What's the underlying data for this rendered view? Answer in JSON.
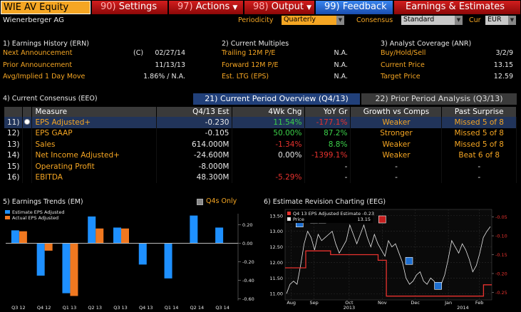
{
  "toolbar": {
    "ticker": "WIE AV Equity",
    "settings": {
      "num": "90)",
      "label": "Settings"
    },
    "actions": {
      "num": "97)",
      "label": "Actions"
    },
    "output": {
      "num": "98)",
      "label": "Output"
    },
    "feedback": {
      "num": "99)",
      "label": "Feedback"
    },
    "title": "Earnings & Estimates"
  },
  "header": {
    "company": "Wienerberger AG",
    "periodicity_label": "Periodicity",
    "periodicity_value": "Quarterly",
    "consensus_label": "Consensus",
    "consensus_value": "Standard",
    "cur_label": "Cur",
    "cur_value": "EUR"
  },
  "ern": {
    "title": "1) Earnings History (ERN)",
    "rows": [
      {
        "label": "Next Announcement",
        "flag": "(C)",
        "value": "02/27/14"
      },
      {
        "label": "Prior Announcement",
        "flag": "",
        "value": "11/13/13"
      },
      {
        "label": "Avg/Implied 1 Day Move",
        "flag": "",
        "value": "1.86% / N.A."
      }
    ]
  },
  "multiples": {
    "title": "2) Current Multiples",
    "rows": [
      {
        "label": "Trailing 12M P/E",
        "value": "N.A."
      },
      {
        "label": "Forward 12M P/E",
        "value": "N.A."
      },
      {
        "label": "Est. LTG (EPS)",
        "value": "N.A."
      }
    ]
  },
  "anr": {
    "title": "3) Analyst Coverage (ANR)",
    "rows": [
      {
        "label": "Buy/Hold/Sell",
        "value": "3/2/9"
      },
      {
        "label": "Current Price",
        "value": "13.15"
      },
      {
        "label": "Target Price",
        "value": "12.59"
      }
    ]
  },
  "eeo": {
    "title": "4) Current Consensus (EEO)",
    "tab_current": "21) Current Period Overview (Q4/13)",
    "tab_prior": "22) Prior Period Analysis (Q3/13)",
    "headers": [
      "Measure",
      "Q4/13 Est",
      "4Wk Chg",
      "YoY Gr",
      "Growth vs Comps",
      "Past Surprise"
    ],
    "rows": [
      {
        "num": "11)",
        "measure": "EPS Adjusted+",
        "est": "-0.230",
        "chg": "11.54%",
        "yoy": "-177.1%",
        "comps": "Weaker",
        "surprise": "Missed 5 of 8"
      },
      {
        "num": "12)",
        "measure": "EPS GAAP",
        "est": "-0.105",
        "chg": "50.00%",
        "yoy": "87.2%",
        "comps": "Stronger",
        "surprise": "Missed 5 of 8"
      },
      {
        "num": "13)",
        "measure": "Sales",
        "est": "614.000M",
        "chg": "-1.34%",
        "yoy": "8.8%",
        "comps": "Weaker",
        "surprise": "Missed 5 of 8"
      },
      {
        "num": "14)",
        "measure": "Net Income Adjusted+",
        "est": "-24.600M",
        "chg": "0.00%",
        "yoy": "-1399.1%",
        "comps": "Weaker",
        "surprise": "Beat 6 of 8"
      },
      {
        "num": "15)",
        "measure": "Operating Profit",
        "est": "-8.000M",
        "chg": "",
        "yoy": "-",
        "comps": "-",
        "surprise": "-"
      },
      {
        "num": "16)",
        "measure": "EBITDA",
        "est": "48.300M",
        "chg": "-5.29%",
        "yoy": "-",
        "comps": "-",
        "surprise": "-"
      }
    ]
  },
  "em": {
    "title": "5) Earnings Trends (EM)",
    "q4s_label": "Q4s Only",
    "legend": [
      "Estimate EPS Adjusted",
      "Actual EPS Adjusted"
    ],
    "yticks": [
      "0.20",
      "0.00",
      "-0.20",
      "-0.40",
      "-0.60"
    ]
  },
  "eeg": {
    "title": "6) Estimate Revision Charting (EEG)",
    "legend_est": "Q4 13 EPS Adjusted Estimate -0.23",
    "legend_price": "Price",
    "legend_price_val": "13.15",
    "left_ticks": [
      "13.50",
      "13.00",
      "12.50",
      "12.00",
      "11.50",
      "11.00"
    ],
    "right_ticks": [
      "-0.05",
      "-0.10",
      "-0.15",
      "-0.20",
      "-0.25"
    ],
    "x_ticks": [
      "Aug",
      "Sep",
      "Oct",
      "Nov",
      "Dec",
      "Jan",
      "Feb"
    ],
    "year_ticks": [
      "2013",
      "2014"
    ]
  },
  "chart_data": [
    {
      "type": "bar",
      "title": "",
      "categories": [
        "Q3 12",
        "Q4 12",
        "Q1 13",
        "Q2 13",
        "Q3 13",
        "Q4 13",
        "Q1 14",
        "Q2 14",
        "Q3 14"
      ],
      "series": [
        {
          "name": "Estimate EPS Adjusted",
          "color": "#1e90ff",
          "values": [
            0.14,
            -0.35,
            -0.54,
            0.29,
            0.17,
            -0.23,
            -0.38,
            0.3,
            0.17
          ]
        },
        {
          "name": "Actual EPS Adjusted",
          "color": "#f07820",
          "values": [
            0.13,
            -0.08,
            -0.57,
            0.16,
            0.16,
            null,
            null,
            null,
            null
          ]
        }
      ],
      "ylim": [
        -0.62,
        0.32
      ],
      "yticks": [
        0.2,
        0.0,
        -0.2,
        -0.4,
        -0.6
      ]
    },
    {
      "type": "line",
      "title": "",
      "x_range": [
        "2013-07-24",
        "2014-02-20"
      ],
      "series": [
        {
          "name": "Price",
          "axis": "left",
          "color": "#e8e8e8",
          "values": [
            11.0,
            11.3,
            11.4,
            11.3,
            11.9,
            12.6,
            13.0,
            12.8,
            12.4,
            12.9,
            12.7,
            12.8,
            12.9,
            13.0,
            12.6,
            12.3,
            12.5,
            12.7,
            13.2,
            12.9,
            12.6,
            12.9,
            13.2,
            12.8,
            12.5,
            12.9,
            12.6,
            12.4,
            12.2,
            12.7,
            12.5,
            12.6,
            12.3,
            12.0,
            11.5,
            11.3,
            11.4,
            11.6,
            11.7,
            11.4,
            11.3,
            11.5,
            11.4,
            11.2,
            11.3,
            11.6,
            12.1,
            12.7,
            12.5,
            12.3,
            12.6,
            12.4,
            12.1,
            11.7,
            11.9,
            12.3,
            12.8,
            13.0,
            13.15
          ]
        },
        {
          "name": "Q4 13 EPS Adjusted Estimate",
          "axis": "right",
          "color": "#e8322e",
          "steps": [
            [
              "Aug",
              -0.185
            ],
            [
              "Sep",
              -0.14
            ],
            [
              "Mid-Sep",
              -0.15
            ],
            [
              "Nov",
              -0.165
            ],
            [
              "Late-Nov",
              -0.26
            ],
            [
              "Feb",
              -0.23
            ]
          ]
        }
      ],
      "left_ylim": [
        10.8,
        13.7
      ],
      "right_ylim": [
        -0.27,
        -0.03
      ]
    }
  ]
}
